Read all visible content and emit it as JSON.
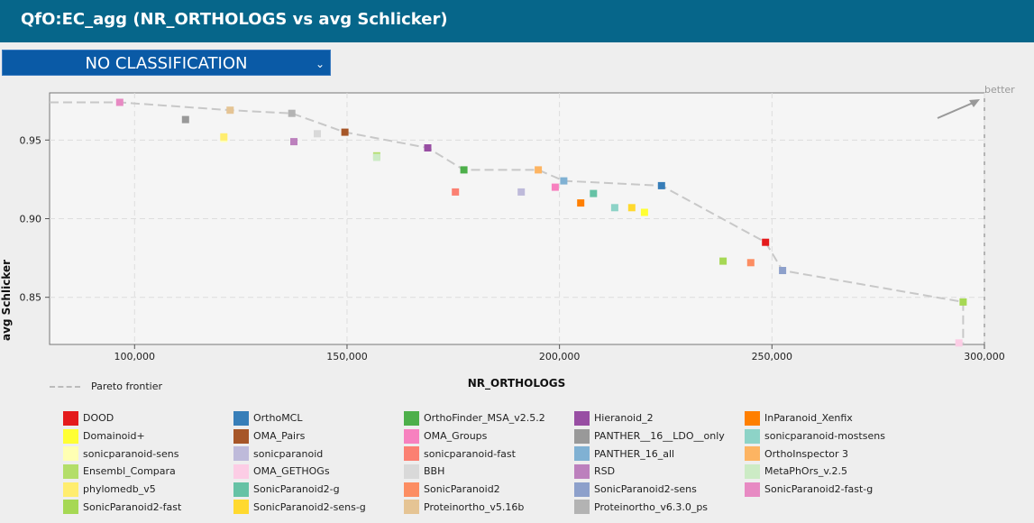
{
  "header": {
    "title": "QfO:EC_agg (NR_ORTHOLOGS vs avg Schlicker)"
  },
  "dropdown": {
    "selected": "NO CLASSIFICATION"
  },
  "colors": {
    "header_bg": "#06668a",
    "dropdown_bg": "#0a5aa6",
    "pareto": "#c8c8c8"
  },
  "chart_data": {
    "type": "scatter",
    "xlabel": "NR_ORTHOLOGS",
    "ylabel": "avg Schlicker",
    "xlim": [
      80000,
      300000
    ],
    "ylim": [
      0.82,
      0.98
    ],
    "x_ticks": [
      100000,
      150000,
      200000,
      250000,
      300000
    ],
    "x_tick_labels": [
      "100,000",
      "150,000",
      "200,000",
      "250,000",
      "300,000"
    ],
    "y_ticks": [
      0.85,
      0.9,
      0.95
    ],
    "y_tick_labels": [
      "0.85",
      "0.90",
      "0.95"
    ],
    "grid": true,
    "annotation": "better",
    "pareto_label": "Pareto frontier",
    "pareto": [
      [
        80000,
        0.974
      ],
      [
        96500,
        0.974
      ],
      [
        122500,
        0.969
      ],
      [
        137000,
        0.967
      ],
      [
        149500,
        0.955
      ],
      [
        169000,
        0.945
      ],
      [
        177500,
        0.931
      ],
      [
        195000,
        0.931
      ],
      [
        201000,
        0.924
      ],
      [
        224000,
        0.921
      ],
      [
        248500,
        0.885
      ],
      [
        252500,
        0.867
      ],
      [
        295000,
        0.847
      ],
      [
        295000,
        0.82
      ]
    ],
    "series": [
      {
        "name": "DOOD",
        "color": "#e41a1c",
        "x": 248500,
        "y": 0.885
      },
      {
        "name": "OrthoMCL",
        "color": "#377eb8",
        "x": 224000,
        "y": 0.921
      },
      {
        "name": "OrthoFinder_MSA_v2.5.2",
        "color": "#4daf4a",
        "x": 177500,
        "y": 0.931
      },
      {
        "name": "Hieranoid_2",
        "color": "#984ea3",
        "x": 169000,
        "y": 0.945
      },
      {
        "name": "InParanoid_Xenfix",
        "color": "#ff7f00",
        "x": 205000,
        "y": 0.91
      },
      {
        "name": "Domainoid+",
        "color": "#ffff33",
        "x": 220000,
        "y": 0.904
      },
      {
        "name": "OMA_Pairs",
        "color": "#a65628",
        "x": 149500,
        "y": 0.955
      },
      {
        "name": "OMA_Groups",
        "color": "#f781bf",
        "x": 199000,
        "y": 0.92
      },
      {
        "name": "PANTHER__16__LDO__only",
        "color": "#999999",
        "x": 112000,
        "y": 0.963
      },
      {
        "name": "sonicparanoid-mostsens",
        "color": "#8dd3c7",
        "x": 213000,
        "y": 0.907
      },
      {
        "name": "sonicparanoid-sens",
        "color": "#ffffb3",
        "x": 121000,
        "y": 0.951
      },
      {
        "name": "sonicparanoid",
        "color": "#bebada",
        "x": 191000,
        "y": 0.917
      },
      {
        "name": "sonicparanoid-fast",
        "color": "#fb8072",
        "x": 175500,
        "y": 0.917
      },
      {
        "name": "PANTHER_16_all",
        "color": "#80b1d3",
        "x": 201000,
        "y": 0.924
      },
      {
        "name": "OrthoInspector 3",
        "color": "#fdb462",
        "x": 195000,
        "y": 0.931
      },
      {
        "name": "Ensembl_Compara",
        "color": "#b3de69",
        "x": 157000,
        "y": 0.94
      },
      {
        "name": "OMA_GETHOGs",
        "color": "#fccde5",
        "x": 294000,
        "y": 0.821
      },
      {
        "name": "BBH",
        "color": "#d9d9d9",
        "x": 143000,
        "y": 0.954
      },
      {
        "name": "RSD",
        "color": "#bc80bd",
        "x": 137500,
        "y": 0.949
      },
      {
        "name": "MetaPhOrs_v.2.5",
        "color": "#ccebc5",
        "x": 157000,
        "y": 0.939
      },
      {
        "name": "phylomedb_v5",
        "color": "#ffed6f",
        "x": 121000,
        "y": 0.952
      },
      {
        "name": "SonicParanoid2-g",
        "color": "#66c2a5",
        "x": 208000,
        "y": 0.916
      },
      {
        "name": "SonicParanoid2",
        "color": "#fc8d62",
        "x": 245000,
        "y": 0.872
      },
      {
        "name": "SonicParanoid2-sens",
        "color": "#8da0cb",
        "x": 252500,
        "y": 0.867
      },
      {
        "name": "SonicParanoid2-fast-g",
        "color": "#e78ac3",
        "x": 96500,
        "y": 0.974
      },
      {
        "name": "SonicParanoid2-fast",
        "color": "#a6d854",
        "x": 295000,
        "y": 0.847
      },
      {
        "name": "SonicParanoid2-sens-g",
        "color": "#ffd92f",
        "x": 217000,
        "y": 0.907
      },
      {
        "name": "Proteinortho_v5.16b",
        "color": "#e5c494",
        "x": 122500,
        "y": 0.969
      },
      {
        "name": "Proteinortho_v6.3.0_ps",
        "color": "#b3b3b3",
        "x": 137000,
        "y": 0.967
      },
      {
        "name": "",
        "color": "#a6d854",
        "x": 238500,
        "y": 0.873
      }
    ]
  }
}
